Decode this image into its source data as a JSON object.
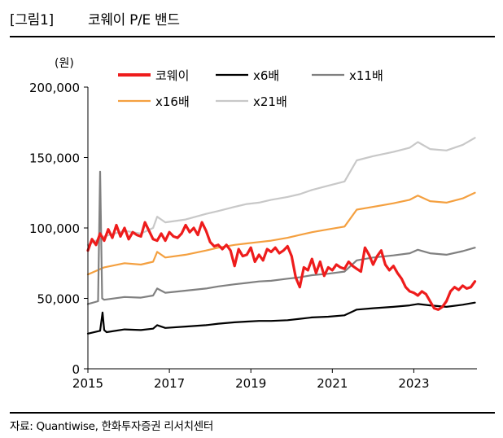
{
  "figure": {
    "number": "[그림1]",
    "title": "코웨이 P/E 밴드",
    "source": "자료: Quantiwise, 한화투자증권 리서치센터"
  },
  "chart_data": {
    "type": "line",
    "unit_label": "(원)",
    "ylim": [
      0,
      200000
    ],
    "y_ticks": [
      0,
      50000,
      100000,
      150000,
      200000
    ],
    "y_tick_labels": [
      "0",
      "50,000",
      "100,000",
      "150,000",
      "200,000"
    ],
    "xlim": [
      2015.0,
      2024.55
    ],
    "x_ticks": [
      2015,
      2017,
      2019,
      2021,
      2023
    ],
    "x_tick_labels": [
      "2015",
      "2017",
      "2019",
      "2021",
      "2023"
    ],
    "legend_position": "top",
    "series": [
      {
        "name": "코웨이",
        "color": "#ee1c1c",
        "width": 3.2,
        "x": [
          2015.0,
          2015.1,
          2015.2,
          2015.3,
          2015.4,
          2015.5,
          2015.6,
          2015.7,
          2015.8,
          2015.9,
          2016.0,
          2016.1,
          2016.2,
          2016.3,
          2016.4,
          2016.5,
          2016.6,
          2016.7,
          2016.8,
          2016.9,
          2017.0,
          2017.1,
          2017.2,
          2017.3,
          2017.4,
          2017.5,
          2017.6,
          2017.7,
          2017.8,
          2017.9,
          2018.0,
          2018.1,
          2018.2,
          2018.3,
          2018.4,
          2018.5,
          2018.6,
          2018.7,
          2018.8,
          2018.9,
          2019.0,
          2019.1,
          2019.2,
          2019.3,
          2019.4,
          2019.5,
          2019.6,
          2019.7,
          2019.8,
          2019.9,
          2020.0,
          2020.1,
          2020.2,
          2020.3,
          2020.4,
          2020.5,
          2020.6,
          2020.7,
          2020.8,
          2020.9,
          2021.0,
          2021.1,
          2021.2,
          2021.3,
          2021.4,
          2021.5,
          2021.6,
          2021.7,
          2021.8,
          2021.9,
          2022.0,
          2022.1,
          2022.2,
          2022.3,
          2022.4,
          2022.5,
          2022.6,
          2022.7,
          2022.8,
          2022.9,
          2023.0,
          2023.1,
          2023.2,
          2023.3,
          2023.4,
          2023.5,
          2023.6,
          2023.7,
          2023.8,
          2023.9,
          2024.0,
          2024.1,
          2024.2,
          2024.3,
          2024.4,
          2024.5
        ],
        "y": [
          84000,
          92000,
          88000,
          96000,
          91000,
          99000,
          93000,
          102000,
          94000,
          100000,
          92000,
          97000,
          95000,
          94000,
          104000,
          98000,
          92000,
          91000,
          96000,
          91000,
          97000,
          94000,
          93000,
          96000,
          102000,
          97000,
          100000,
          95000,
          104000,
          98000,
          90000,
          87000,
          88000,
          85000,
          88000,
          84000,
          73000,
          85000,
          80000,
          81000,
          86000,
          76000,
          81000,
          77000,
          85000,
          83000,
          86000,
          82000,
          84000,
          87000,
          80000,
          65000,
          58000,
          72000,
          70000,
          78000,
          68000,
          76000,
          66000,
          72000,
          70000,
          74000,
          72000,
          71000,
          76000,
          73000,
          71000,
          69000,
          86000,
          81000,
          74000,
          80000,
          84000,
          74000,
          70000,
          73000,
          68000,
          64000,
          58000,
          55000,
          54000,
          52000,
          55000,
          53000,
          48000,
          43000,
          42000,
          44000,
          48000,
          55000,
          58000,
          56000,
          59000,
          57000,
          58000,
          62000
        ]
      },
      {
        "name": "x6배",
        "color": "#000000",
        "width": 2.2,
        "x": [
          2015.0,
          2015.3,
          2015.36,
          2015.4,
          2015.46,
          2015.9,
          2016.3,
          2016.6,
          2016.7,
          2016.9,
          2017.4,
          2017.9,
          2018.2,
          2018.6,
          2018.9,
          2019.2,
          2019.5,
          2019.9,
          2020.2,
          2020.5,
          2020.9,
          2021.3,
          2021.6,
          2022.0,
          2022.5,
          2022.9,
          2023.1,
          2023.4,
          2023.8,
          2024.2,
          2024.5
        ],
        "y": [
          25000,
          27000,
          40000,
          27500,
          26000,
          28000,
          27500,
          28500,
          31000,
          29000,
          30000,
          31000,
          32000,
          33000,
          33500,
          34000,
          34000,
          34500,
          35500,
          36500,
          37000,
          38000,
          42000,
          43000,
          44000,
          45000,
          46000,
          45000,
          44000,
          45500,
          47000
        ]
      },
      {
        "name": "x11배",
        "color": "#808080",
        "width": 2.2,
        "x": [
          2015.0,
          2015.25,
          2015.3,
          2015.35,
          2015.4,
          2015.9,
          2016.3,
          2016.6,
          2016.7,
          2016.9,
          2017.4,
          2017.9,
          2018.2,
          2018.6,
          2018.9,
          2019.2,
          2019.5,
          2019.9,
          2020.2,
          2020.5,
          2020.9,
          2021.3,
          2021.6,
          2022.0,
          2022.5,
          2022.9,
          2023.1,
          2023.4,
          2023.8,
          2024.2,
          2024.5
        ],
        "y": [
          46000,
          48000,
          140000,
          50000,
          49000,
          51000,
          50500,
          52000,
          57000,
          54000,
          55500,
          57000,
          58500,
          60000,
          61000,
          62000,
          62500,
          64000,
          65000,
          66500,
          67500,
          69000,
          77000,
          79000,
          80500,
          82000,
          84500,
          82000,
          81000,
          83500,
          86000
        ]
      },
      {
        "name": "x16배",
        "color": "#f4a040",
        "width": 2.2,
        "x": [
          2015.0,
          2015.4,
          2015.9,
          2016.3,
          2016.6,
          2016.7,
          2016.9,
          2017.4,
          2017.9,
          2018.2,
          2018.6,
          2018.9,
          2019.2,
          2019.5,
          2019.9,
          2020.2,
          2020.5,
          2020.9,
          2021.3,
          2021.6,
          2022.0,
          2022.5,
          2022.9,
          2023.1,
          2023.4,
          2023.8,
          2024.2,
          2024.5
        ],
        "y": [
          67000,
          72000,
          75000,
          74000,
          76000,
          83000,
          79000,
          81000,
          84000,
          86000,
          88000,
          89000,
          90000,
          91000,
          93000,
          95000,
          97000,
          99000,
          101000,
          113000,
          115000,
          117500,
          120000,
          123000,
          119000,
          118000,
          121000,
          125000
        ]
      },
      {
        "name": "x21배",
        "color": "#c8c8c8",
        "width": 2.2,
        "x": [
          2015.0,
          2015.4,
          2015.9,
          2016.3,
          2016.6,
          2016.7,
          2016.9,
          2017.4,
          2017.9,
          2018.2,
          2018.6,
          2018.9,
          2019.2,
          2019.5,
          2019.9,
          2020.2,
          2020.5,
          2020.9,
          2021.3,
          2021.6,
          2022.0,
          2022.5,
          2022.9,
          2023.1,
          2023.4,
          2023.8,
          2024.2,
          2024.5
        ],
        "y": [
          88000,
          94000,
          98000,
          96000,
          100000,
          108000,
          104000,
          106000,
          110000,
          112000,
          115000,
          117000,
          118000,
          120000,
          122000,
          124000,
          127000,
          130000,
          133000,
          148000,
          151000,
          154000,
          157000,
          161000,
          156000,
          155000,
          159000,
          164000
        ]
      }
    ]
  }
}
